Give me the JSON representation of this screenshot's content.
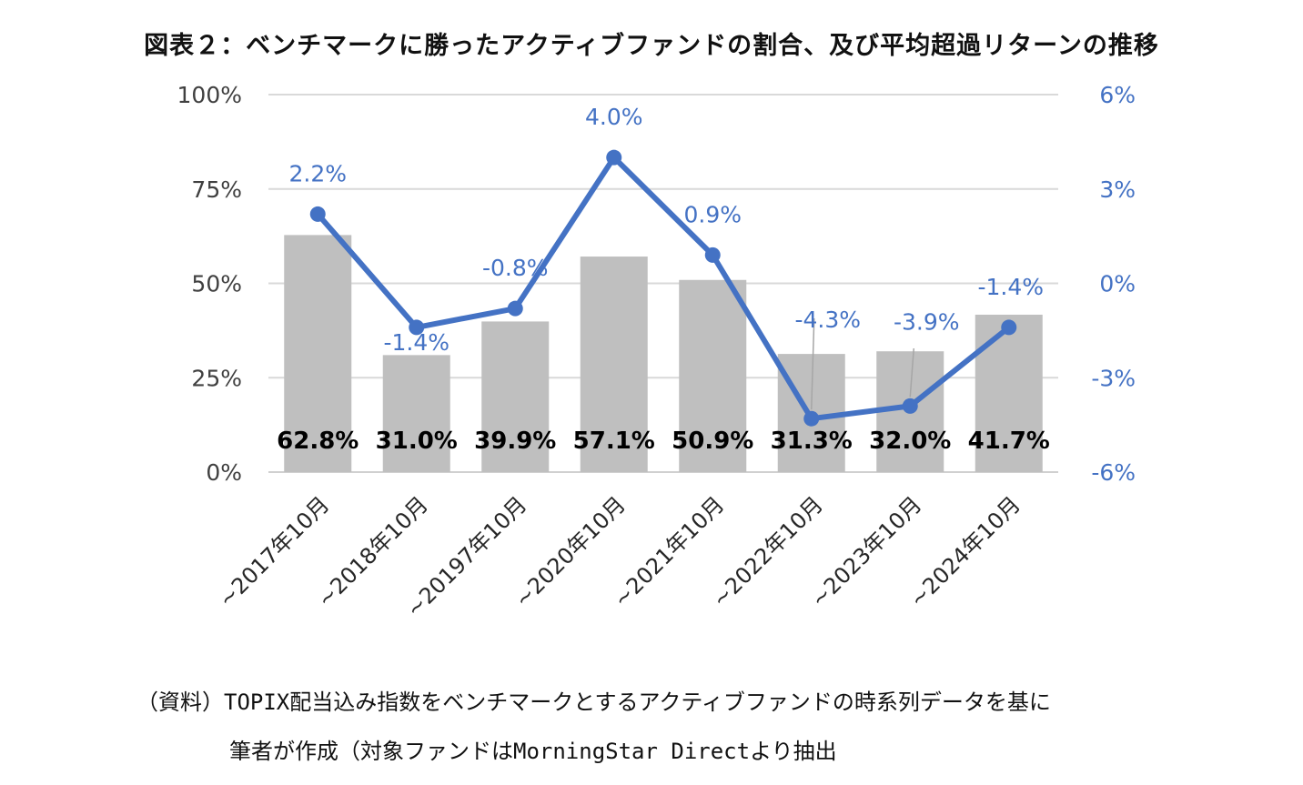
{
  "title": "図表２：ベンチマークに勝ったアクティブファンドの割合、及び平均超過リターンの推移",
  "source": {
    "line1": "（資料）TOPIX配当込み指数をベンチマークとするアクティブファンドの時系列データを基に",
    "line2": "筆者が作成（対象ファンドはMorningStar Directより抽出"
  },
  "chart_data": {
    "type": "bar",
    "title": "図表２：ベンチマークに勝ったアクティブファンドの割合、及び平均超過リターンの推移",
    "categories": [
      "~2017年10月",
      "~2018年10月",
      "~20197年10月",
      "~2020年10月",
      "~2021年10月",
      "~2022年10月",
      "~2023年10月",
      "~2024年10月"
    ],
    "series": [
      {
        "type": "bar",
        "axis": "left",
        "values": [
          62.8,
          31.0,
          39.9,
          57.1,
          50.9,
          31.3,
          32.0,
          41.7
        ],
        "labels": [
          "62.8%",
          "31.0%",
          "39.9%",
          "57.1%",
          "50.9%",
          "31.3%",
          "32.0%",
          "41.7%"
        ],
        "color": "#bfbfbf"
      },
      {
        "type": "line",
        "axis": "right",
        "values": [
          2.2,
          -1.4,
          -0.8,
          4.0,
          0.9,
          -4.3,
          -3.9,
          -1.4
        ],
        "labels": [
          "2.2%",
          "-1.4%",
          "-0.8%",
          "4.0%",
          "0.9%",
          "-4.3%",
          "-3.9%",
          "-1.4%"
        ],
        "color": "#4472c4"
      }
    ],
    "y_left": {
      "min": 0,
      "max": 100,
      "ticks": [
        0,
        25,
        50,
        75,
        100
      ],
      "tick_labels": [
        "0%",
        "25%",
        "50%",
        "75%",
        "100%"
      ]
    },
    "y_right": {
      "min": -6,
      "max": 6,
      "ticks": [
        -6,
        -3,
        0,
        3,
        6
      ],
      "tick_labels": [
        "-6%",
        "-3%",
        "0%",
        "3%",
        "6%"
      ],
      "color": "#4472c4"
    },
    "grid": true,
    "legend": "none"
  }
}
